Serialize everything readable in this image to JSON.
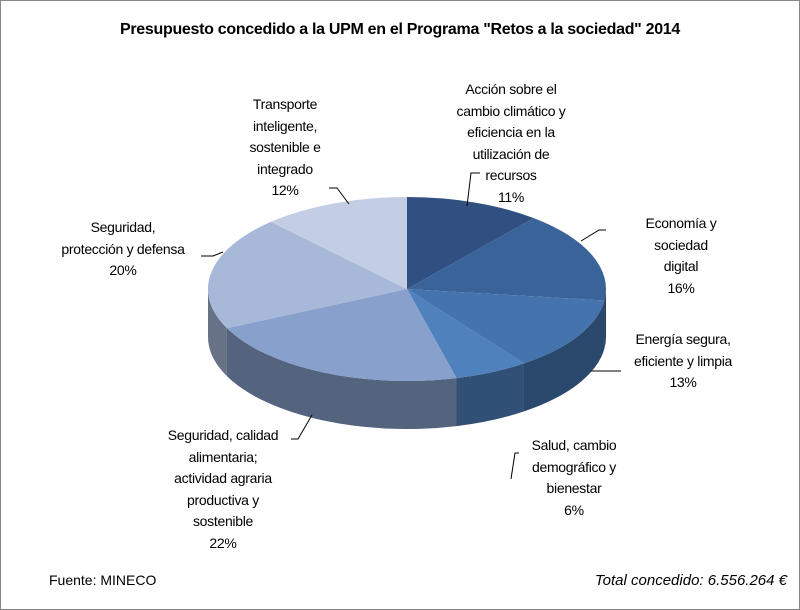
{
  "chart_data": {
    "type": "pie",
    "style": "3d",
    "title": "Presupuesto concedido a la UPM en el Programa \"Retos a la sociedad\" 2014",
    "start": "top, clockwise",
    "slices": [
      {
        "label": "Acción sobre el\ncambio climático y\neficiencia en la\nutilización de\nrecursos",
        "value": 11,
        "pct_label": "11%",
        "color": "#2f5081"
      },
      {
        "label": "Economía y sociedad\ndigital",
        "value": 16,
        "pct_label": "16%",
        "color": "#3a6399"
      },
      {
        "label": "Energía segura,\neficiente y limpia",
        "value": 13,
        "pct_label": "13%",
        "color": "#4473ae"
      },
      {
        "label": "Salud, cambio\ndemográfico y\nbienestar",
        "value": 6,
        "pct_label": "6%",
        "color": "#4f81bd"
      },
      {
        "label": "Seguridad, calidad\nalimentaria;\nactividad agraria\nproductiva y\nsostenible",
        "value": 22,
        "pct_label": "22%",
        "color": "#87a0cc"
      },
      {
        "label": "Seguridad,\nprotección y defensa",
        "value": 20,
        "pct_label": "20%",
        "color": "#a7b8d8"
      },
      {
        "label": "Transporte\ninteligente,\nsostenible e\nintegrado",
        "value": 12,
        "pct_label": "12%",
        "color": "#c3cde3"
      }
    ],
    "legend": "none (data labels)"
  },
  "footer": {
    "source": "Fuente: MINECO",
    "total": "Total concedido: 6.556.264 €"
  }
}
